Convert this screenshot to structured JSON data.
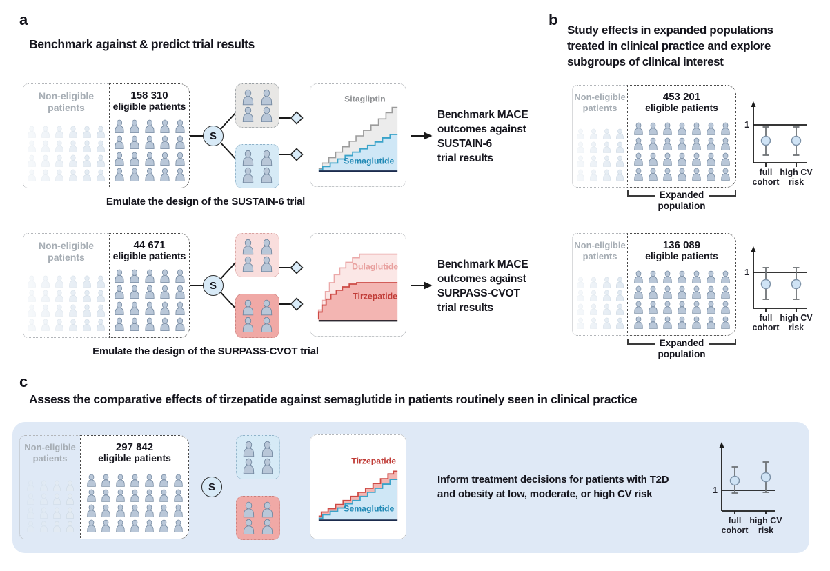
{
  "colors": {
    "text_dark": "#15151d",
    "text_grey": "#a6adb4",
    "line_dark": "#1a1a1a",
    "border_light": "#b3b6ba",
    "border_dark": "#4a4a4a",
    "person_fill": "#b9c7d8",
    "person_stroke": "#71869e",
    "person_faint_fill": "#e2eaf2",
    "person_faint_stroke": "#ccd8e3",
    "box_grey_bg": "#e8e7e5",
    "box_grey_border": "#9aa0a4",
    "box_blue_bg": "#d6eaf6",
    "box_blue_border": "#8fb2c9",
    "box_pink_bg": "#f9dedd",
    "box_pink_border": "#d9a3a1",
    "box_red_bg": "#f0a9a6",
    "box_red_border": "#c97f7c",
    "s_circle_bg": "#d8eaf7",
    "diamond_fill": "#d9ecf9",
    "panel_c_bg": "#dfe9f6",
    "chart_grey_line": "#9b9b9b",
    "chart_grey_fill": "#ececec",
    "chart_grey_label": "#8f9194",
    "chart_blue_line": "#3aa3c9",
    "chart_blue_fill": "#cfe7f6",
    "chart_blue_label": "#2089b5",
    "chart_pink_line": "#eba9a9",
    "chart_pink_fill": "#fbe7e6",
    "chart_pink_label": "#e8a09e",
    "chart_red_line": "#cd4a45",
    "chart_red_fill": "#f3b5b2",
    "chart_red_label": "#c03c37",
    "km_baseline": "#1b2b4d",
    "err_bar": "#6f7377",
    "point_fill": "#cfe3f5",
    "point_stroke": "#7d92a8"
  },
  "panels": {
    "a": {
      "label": "a",
      "title": "Benchmark against & predict trial results",
      "rows": [
        {
          "non_eligible": "Non-eligible patients",
          "count": "158 310",
          "count_label": "eligible patients",
          "selector": "S",
          "chart": {
            "top_label": "Sitagliptin",
            "bottom_label": "Semaglutide"
          },
          "outcome_lines": [
            "Benchmark MACE",
            "outcomes against",
            "SUSTAIN-6",
            "trial results"
          ],
          "caption": "Emulate the design of the SUSTAIN-6 trial"
        },
        {
          "non_eligible": "Non-eligible patients",
          "count": "44 671",
          "count_label": "eligible patients",
          "selector": "S",
          "chart": {
            "top_label": "Dulaglutide",
            "bottom_label": "Tirzepatide"
          },
          "outcome_lines": [
            "Benchmark MACE",
            "outcomes against",
            "SURPASS-CVOT",
            "trial results"
          ],
          "caption": "Emulate the design of the SURPASS-CVOT trial"
        }
      ]
    },
    "b": {
      "label": "b",
      "title_lines": [
        "Study effects in expanded populations",
        "treated in clinical practice and explore",
        "subgroups of clinical interest"
      ],
      "blocks": [
        {
          "non_eligible": "Non-eligible patients",
          "count": "453 201",
          "count_label": "eligible patients",
          "brace_top": "Expanded",
          "brace_bottom": "population",
          "plot": {
            "ref": "1",
            "cat1": [
              "full",
              "cohort"
            ],
            "cat2": [
              "high CV",
              "risk"
            ]
          }
        },
        {
          "non_eligible": "Non-eligible patients",
          "count": "136 089",
          "count_label": "eligible patients",
          "brace_top": "Expanded",
          "brace_bottom": "population",
          "plot": {
            "ref": "1",
            "cat1": [
              "full",
              "cohort"
            ],
            "cat2": [
              "high CV",
              "risk"
            ]
          }
        }
      ]
    },
    "c": {
      "label": "c",
      "title": "Assess the comparative effects of tirzepatide against semaglutide in patients routinely seen in clinical practice",
      "non_eligible": "Non-eligible patients",
      "count": "297 842",
      "count_label": "eligible patients",
      "selector": "S",
      "chart": {
        "top_label": "Tirzepatide",
        "bottom_label": "Semaglutide"
      },
      "outcome_lines": [
        "Inform treatment decisions for patients with T2D",
        "and obesity at low, moderate, or high CV risk"
      ],
      "plot": {
        "ref": "1",
        "cat1": [
          "full",
          "cohort"
        ],
        "cat2": [
          "high CV",
          "risk"
        ]
      }
    }
  }
}
